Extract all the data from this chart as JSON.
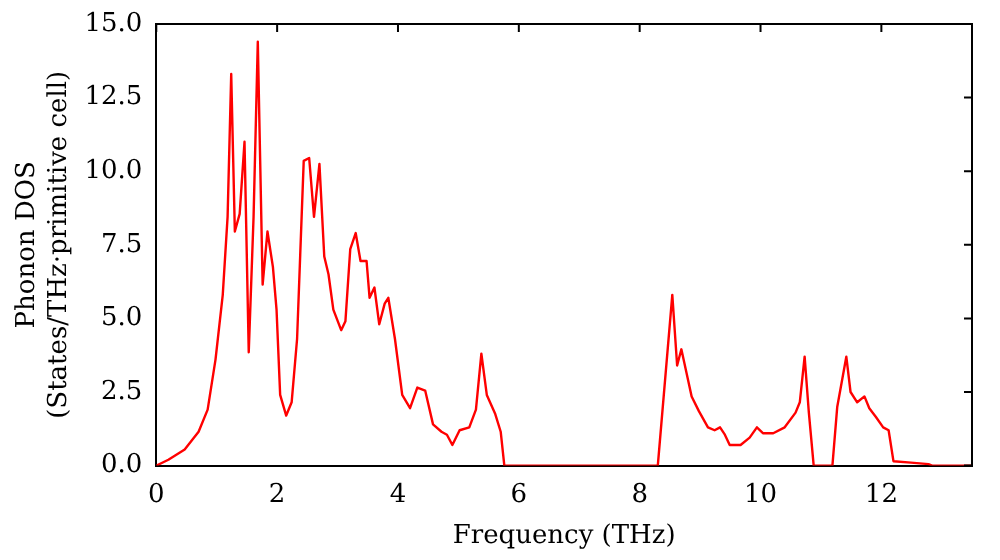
{
  "chart_data": {
    "type": "line",
    "xlabel": "Frequency (THz)",
    "ylabel": "Phonon DOS\n(States/THz·primitive cell)",
    "xlim": [
      0,
      13.5
    ],
    "ylim": [
      0,
      15
    ],
    "xticks": [
      0,
      2,
      4,
      6,
      8,
      10,
      12
    ],
    "yticks": [
      {
        "value": 0,
        "label": "0.0"
      },
      {
        "value": 2.5,
        "label": "2.5"
      },
      {
        "value": 5,
        "label": "5.0"
      },
      {
        "value": 7.5,
        "label": "7.5"
      },
      {
        "value": 10,
        "label": "10.0"
      },
      {
        "value": 12.5,
        "label": "12.5"
      },
      {
        "value": 15,
        "label": "15.0"
      }
    ],
    "grid": false,
    "legend": false,
    "marker": "none",
    "line_style": "solid",
    "series": [
      {
        "color": "#ff0000",
        "x": [
          0,
          0.2,
          0.47,
          0.7,
          0.85,
          0.98,
          1.1,
          1.18,
          1.24,
          1.3,
          1.38,
          1.46,
          1.53,
          1.61,
          1.68,
          1.76,
          1.84,
          1.93,
          1.99,
          2.05,
          2.15,
          2.24,
          2.33,
          2.44,
          2.53,
          2.61,
          2.7,
          2.78,
          2.85,
          2.93,
          3.06,
          3.13,
          3.21,
          3.3,
          3.38,
          3.48,
          3.53,
          3.61,
          3.69,
          3.78,
          3.84,
          3.95,
          4.07,
          4.2,
          4.32,
          4.45,
          4.58,
          4.72,
          4.81,
          4.9,
          5.02,
          5.18,
          5.29,
          5.38,
          5.47,
          5.61,
          5.7,
          5.76,
          8.3,
          8.54,
          8.62,
          8.69,
          8.78,
          8.86,
          8.98,
          9.13,
          9.24,
          9.33,
          9.41,
          9.49,
          9.67,
          9.82,
          9.94,
          10.04,
          10.21,
          10.4,
          10.58,
          10.65,
          10.73,
          10.8,
          10.88,
          11.19,
          11.27,
          11.42,
          11.49,
          11.6,
          11.72,
          11.8,
          11.91,
          12.03,
          12.12,
          12.2,
          12.49,
          12.78,
          12.84,
          13.5
        ],
        "values": [
          0,
          0.2,
          0.55,
          1.15,
          1.9,
          3.6,
          5.8,
          8.45,
          13.3,
          7.95,
          8.55,
          11,
          3.85,
          8.45,
          14.4,
          6.15,
          7.95,
          6.75,
          5.3,
          2.4,
          1.7,
          2.15,
          4.3,
          10.35,
          10.45,
          8.45,
          10.25,
          7.1,
          6.5,
          5.3,
          4.6,
          4.9,
          7.35,
          7.9,
          6.95,
          6.95,
          5.7,
          6.05,
          4.8,
          5.5,
          5.7,
          4.3,
          2.4,
          1.95,
          2.65,
          2.55,
          1.4,
          1.15,
          1.05,
          0.7,
          1.2,
          1.3,
          1.9,
          3.8,
          2.4,
          1.75,
          1.15,
          0,
          0,
          5.8,
          3.4,
          3.95,
          3.1,
          2.35,
          1.85,
          1.3,
          1.2,
          1.3,
          1.05,
          0.7,
          0.7,
          0.95,
          1.3,
          1.1,
          1.1,
          1.3,
          1.8,
          2.15,
          3.7,
          1.8,
          0,
          0,
          2,
          3.7,
          2.5,
          2.15,
          2.35,
          1.95,
          1.65,
          1.3,
          1.2,
          0.15,
          0.1,
          0.05,
          0,
          0
        ]
      }
    ]
  }
}
